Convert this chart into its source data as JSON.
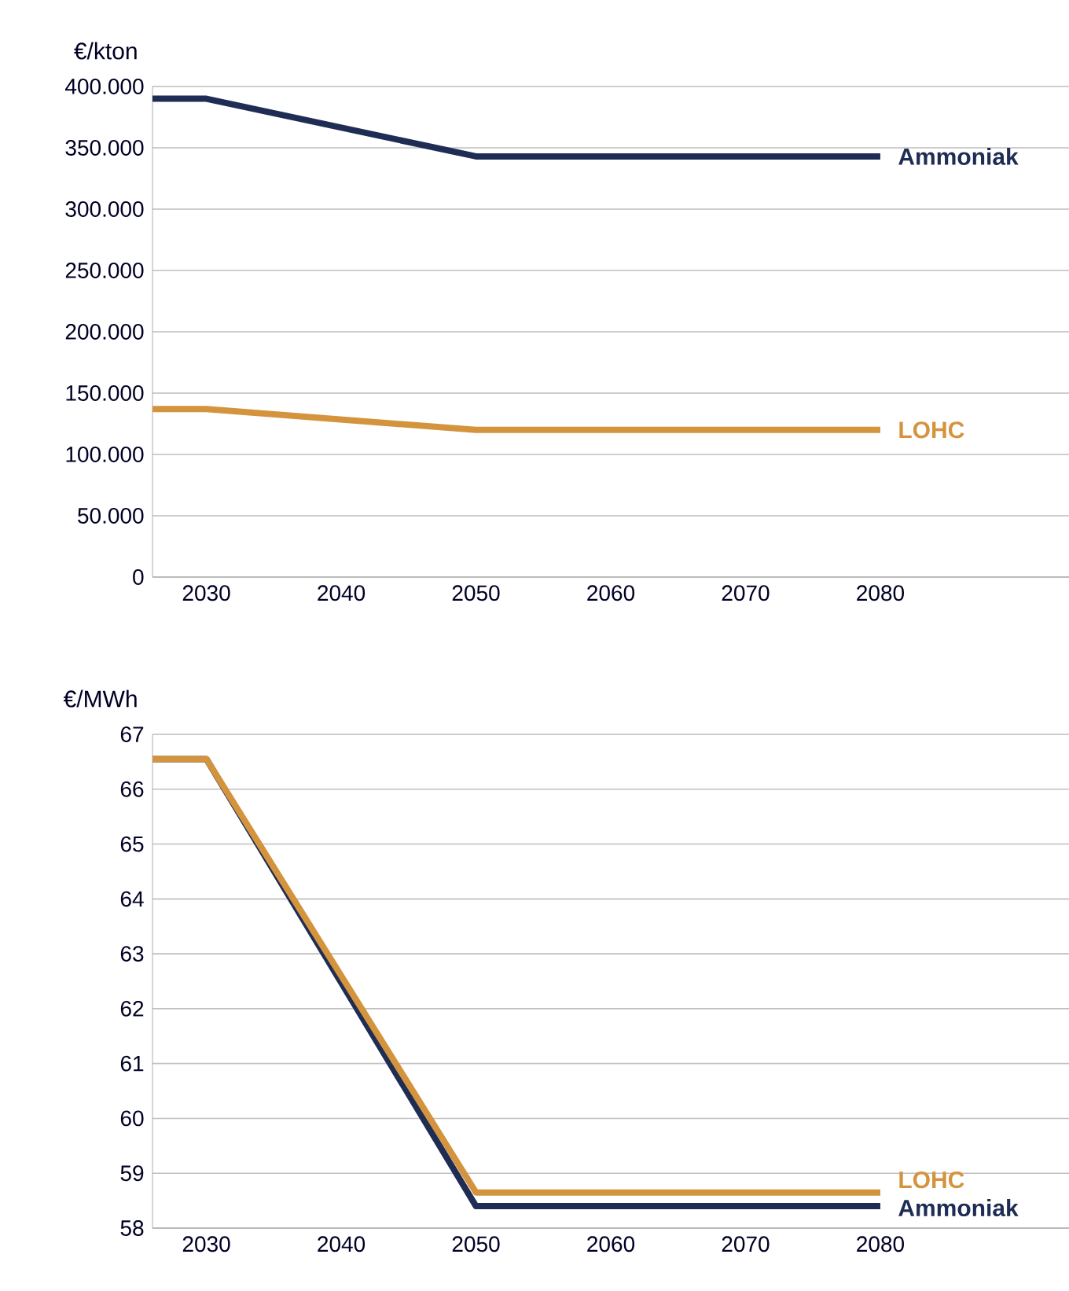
{
  "chart_data": [
    {
      "type": "line",
      "ylabel": "€/kton",
      "x": [
        2026,
        2030,
        2050,
        2080
      ],
      "xlim": [
        2026,
        2094
      ],
      "xticks": [
        2030,
        2040,
        2050,
        2060,
        2070,
        2080
      ],
      "ylim": [
        0,
        400000
      ],
      "yticks": [
        0,
        {
          "value": 50000,
          "label": "50.000"
        },
        {
          "value": 100000,
          "label": "100.000"
        },
        {
          "value": 150000,
          "label": "150.000"
        },
        {
          "value": 200000,
          "label": "200.000"
        },
        {
          "value": 250000,
          "label": "250.000"
        },
        {
          "value": 300000,
          "label": "300.000"
        },
        {
          "value": 350000,
          "label": "350.000"
        },
        {
          "value": 400000,
          "label": "400.000"
        }
      ],
      "grid": "y",
      "series": [
        {
          "name": "Ammoniak",
          "color": "#1f2d54",
          "values": [
            390000,
            390000,
            343000,
            343000
          ]
        },
        {
          "name": "LOHC",
          "color": "#d4943e",
          "values": [
            137000,
            137000,
            120000,
            120000
          ]
        }
      ]
    },
    {
      "type": "line",
      "ylabel": "€/MWh",
      "x": [
        2026,
        2030,
        2050,
        2080
      ],
      "xlim": [
        2026,
        2094
      ],
      "xticks": [
        2030,
        2040,
        2050,
        2060,
        2070,
        2080
      ],
      "ylim": [
        58,
        67
      ],
      "yticks": [
        58,
        59,
        60,
        61,
        62,
        63,
        64,
        65,
        66,
        67
      ],
      "grid": "y",
      "series": [
        {
          "name": "Ammoniak",
          "color": "#1f2d54",
          "values": [
            66.55,
            66.55,
            58.4,
            58.4
          ]
        },
        {
          "name": "LOHC",
          "color": "#d4943e",
          "values": [
            66.55,
            66.55,
            58.65,
            58.65
          ]
        }
      ]
    }
  ]
}
